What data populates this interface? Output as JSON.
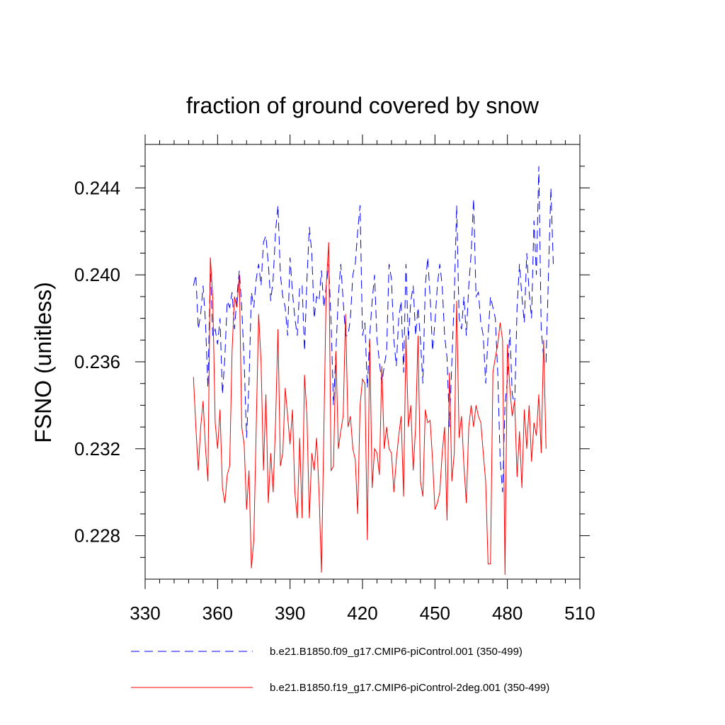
{
  "chart_data": {
    "type": "line",
    "title": "fraction of ground covered by snow",
    "xlabel": "",
    "ylabel": "FSNO  (unitless)",
    "xlim": [
      330,
      510
    ],
    "ylim": [
      0.226,
      0.246
    ],
    "xticks": [
      330,
      360,
      390,
      420,
      450,
      480,
      510
    ],
    "xtick_labels": [
      "330",
      "360",
      "390",
      "420",
      "450",
      "480",
      "510"
    ],
    "yticks": [
      0.228,
      0.232,
      0.236,
      0.24,
      0.244
    ],
    "ytick_labels": [
      "0.228",
      "0.232",
      "0.236",
      "0.240",
      "0.244"
    ],
    "grid": false,
    "legend_position": "bottom",
    "series": [
      {
        "name": "b.e21.B1850.f09_g17.CMIP6-piControl.001 (350-499)",
        "color": "#0000ff",
        "style": "dashed",
        "x_start": 350,
        "values": [
          0.2395,
          0.24,
          0.2375,
          0.2382,
          0.2395,
          0.2378,
          0.2348,
          0.2403,
          0.2372,
          0.2375,
          0.2368,
          0.238,
          0.2345,
          0.2362,
          0.2388,
          0.2385,
          0.2392,
          0.2375,
          0.239,
          0.2402,
          0.2385,
          0.236,
          0.2325,
          0.235,
          0.2392,
          0.2385,
          0.2398,
          0.2405,
          0.2395,
          0.2415,
          0.2418,
          0.2405,
          0.2388,
          0.2398,
          0.242,
          0.2432,
          0.24,
          0.239,
          0.2385,
          0.2372,
          0.2408,
          0.2392,
          0.238,
          0.2372,
          0.2395,
          0.2395,
          0.2365,
          0.2398,
          0.2422,
          0.241,
          0.238,
          0.239,
          0.2388,
          0.2402,
          0.2385,
          0.2395,
          0.2405,
          0.2378,
          0.234,
          0.2365,
          0.239,
          0.2405,
          0.2388,
          0.2372,
          0.2372,
          0.238,
          0.24,
          0.2405,
          0.242,
          0.2432,
          0.2372,
          0.2378,
          0.2348,
          0.2372,
          0.2388,
          0.24,
          0.237,
          0.236,
          0.235,
          0.2358,
          0.2365,
          0.2405,
          0.2398,
          0.237,
          0.2358,
          0.238,
          0.2388,
          0.2355,
          0.2405,
          0.237,
          0.2388,
          0.2395,
          0.2372,
          0.2385,
          0.237,
          0.235,
          0.2395,
          0.2408,
          0.239,
          0.2365,
          0.2378,
          0.2395,
          0.2405,
          0.2395,
          0.2372,
          0.2362,
          0.233,
          0.236,
          0.239,
          0.2432,
          0.238,
          0.2375,
          0.239,
          0.2372,
          0.2395,
          0.241,
          0.2435,
          0.239,
          0.2392,
          0.2378,
          0.2372,
          0.235,
          0.2372,
          0.239,
          0.2385,
          0.238,
          0.2355,
          0.2315,
          0.23,
          0.234,
          0.2352,
          0.2375,
          0.2345,
          0.234,
          0.2385,
          0.2405,
          0.239,
          0.2378,
          0.241,
          0.2392,
          0.238,
          0.2425,
          0.24,
          0.245,
          0.2375,
          0.2362,
          0.236,
          0.24,
          0.244,
          0.2405
        ]
      },
      {
        "name": "b.e21.B1850.f19_g17.CMIP6-piControl-2deg.001 (350-499)",
        "color": "#ff0000",
        "style": "solid",
        "x_start": 350,
        "values": [
          0.2353,
          0.233,
          0.231,
          0.233,
          0.2342,
          0.232,
          0.2305,
          0.2408,
          0.239,
          0.2332,
          0.232,
          0.2338,
          0.2302,
          0.2295,
          0.2308,
          0.2312,
          0.2365,
          0.239,
          0.2385,
          0.24,
          0.233,
          0.2322,
          0.2292,
          0.231,
          0.2265,
          0.2278,
          0.233,
          0.2382,
          0.236,
          0.231,
          0.2345,
          0.2295,
          0.2318,
          0.23,
          0.2332,
          0.2375,
          0.2312,
          0.2318,
          0.2348,
          0.2335,
          0.2322,
          0.2338,
          0.23,
          0.2288,
          0.2325,
          0.2288,
          0.2354,
          0.2335,
          0.2288,
          0.2318,
          0.231,
          0.2325,
          0.23,
          0.2263,
          0.2328,
          0.2395,
          0.2415,
          0.231,
          0.2312,
          0.2365,
          0.232,
          0.2328,
          0.2335,
          0.2382,
          0.233,
          0.2335,
          0.232,
          0.2315,
          0.229,
          0.234,
          0.2352,
          0.235,
          0.2278,
          0.237,
          0.2302,
          0.232,
          0.2318,
          0.2308,
          0.2358,
          0.232,
          0.233,
          0.232,
          0.2318,
          0.23,
          0.2315,
          0.2326,
          0.2335,
          0.2298,
          0.2372,
          0.233,
          0.234,
          0.231,
          0.233,
          0.2372,
          0.2305,
          0.2298,
          0.2338,
          0.2332,
          0.2333,
          0.2315,
          0.2292,
          0.2295,
          0.23,
          0.2318,
          0.233,
          0.2287,
          0.2355,
          0.2305,
          0.2318,
          0.2388,
          0.2325,
          0.2335,
          0.2312,
          0.2295,
          0.233,
          0.234,
          0.233,
          0.234,
          0.2335,
          0.2332,
          0.2318,
          0.2305,
          0.2267,
          0.2267,
          0.2355,
          0.2362,
          0.2368,
          0.2378,
          0.237,
          0.2262,
          0.2368,
          0.2348,
          0.2335,
          0.2342,
          0.2307,
          0.2328,
          0.2302,
          0.2338,
          0.232,
          0.234,
          0.2314,
          0.2332,
          0.2326,
          0.2345,
          0.2318,
          0.237,
          0.232
        ]
      }
    ]
  }
}
